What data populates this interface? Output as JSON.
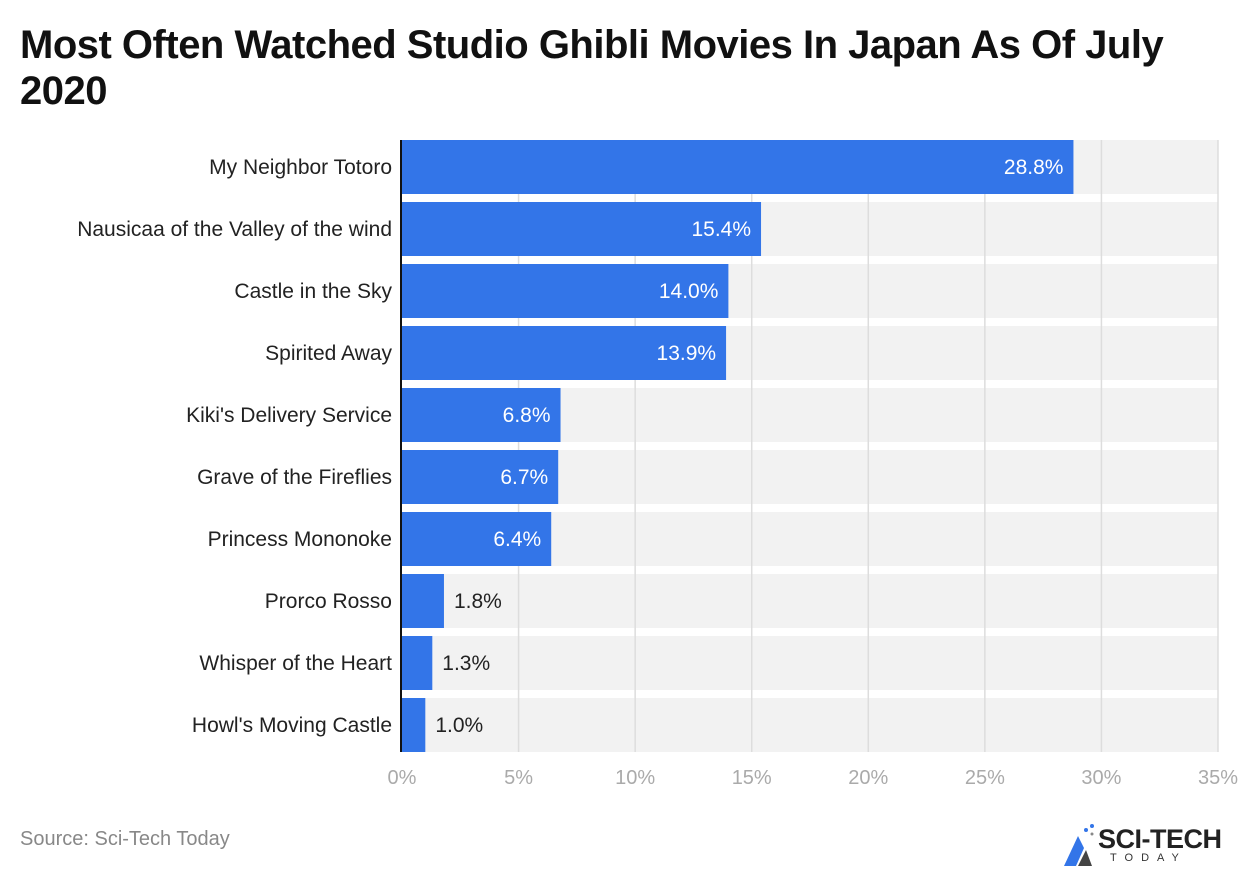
{
  "chart_data": {
    "type": "bar",
    "orientation": "horizontal",
    "title": "Most Often Watched Studio Ghibli Movies In Japan As Of July 2020",
    "categories": [
      "My Neighbor Totoro",
      "Nausicaa of the Valley of the wind",
      "Castle in the Sky",
      "Spirited Away",
      "Kiki's Delivery Service",
      "Grave of the Fireflies",
      "Princess Mononoke",
      "Prorco Rosso",
      "Whisper of the Heart",
      "Howl's Moving Castle"
    ],
    "values": [
      28.8,
      15.4,
      14.0,
      13.9,
      6.8,
      6.7,
      6.4,
      1.8,
      1.3,
      1.0
    ],
    "data_labels": [
      "28.8%",
      "15.4%",
      "14.0%",
      "13.9%",
      "6.8%",
      "6.7%",
      "6.4%",
      "1.8%",
      "1.3%",
      "1.0%"
    ],
    "xlim": [
      0,
      35
    ],
    "x_ticks": [
      0,
      5,
      10,
      15,
      20,
      25,
      30,
      35
    ],
    "x_tick_labels": [
      "0%",
      "5%",
      "10%",
      "15%",
      "20%",
      "25%",
      "30%",
      "35%"
    ],
    "xlabel": "",
    "ylabel": "",
    "grid": true,
    "colors": {
      "bar": "#3375e8",
      "band": "#f2f2f2",
      "grid": "#dddddd"
    }
  },
  "source": "Source: Sci-Tech Today",
  "logo": {
    "main": "SCI-TECH",
    "sub": "TODAY"
  }
}
